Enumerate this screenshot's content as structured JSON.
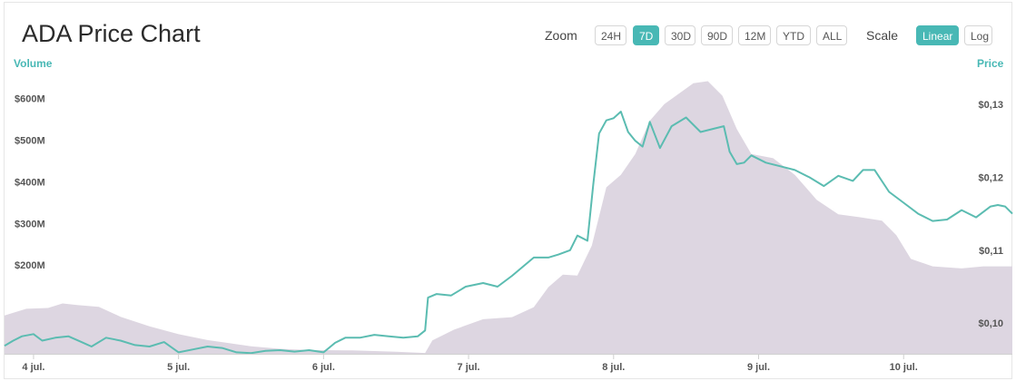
{
  "header": {
    "title": "ADA Price Chart",
    "zoom_label": "Zoom",
    "zoom_options": [
      "24H",
      "7D",
      "30D",
      "90D",
      "12M",
      "YTD",
      "ALL"
    ],
    "zoom_selected": "7D",
    "scale_label": "Scale",
    "scale_options": [
      "Linear",
      "Log"
    ],
    "scale_selected": "Linear"
  },
  "colors": {
    "accent": "#48b8b5",
    "price_line": "#5bbcb1",
    "volume_fill": "#ddd6e1"
  },
  "chart_data": {
    "type": "line",
    "title": "ADA Price Chart",
    "left_axis_title": "Volume",
    "right_axis_title": "Price",
    "x_ticks": [
      "4 jul.",
      "5 jul.",
      "6 jul.",
      "7 jul.",
      "8 jul.",
      "9 jul.",
      "10 jul."
    ],
    "volume_ticks": [
      {
        "value": 200,
        "label": "$200M"
      },
      {
        "value": 300,
        "label": "$300M"
      },
      {
        "value": 400,
        "label": "$400M"
      },
      {
        "value": 500,
        "label": "$500M"
      },
      {
        "value": 600,
        "label": "$600M"
      }
    ],
    "price_ticks": [
      {
        "value": 0.1,
        "label": "$0,10"
      },
      {
        "value": 0.11,
        "label": "$0,11"
      },
      {
        "value": 0.12,
        "label": "$0,12"
      },
      {
        "value": 0.13,
        "label": "$0,13"
      }
    ],
    "x_range_days": [
      3.8,
      10.75
    ],
    "volume_range": [
      0,
      680
    ],
    "price_range": [
      0.0958,
      0.1346
    ],
    "series": [
      {
        "name": "Volume",
        "type": "area",
        "points": [
          [
            3.8,
            92
          ],
          [
            3.95,
            108
          ],
          [
            4.1,
            110
          ],
          [
            4.2,
            121
          ],
          [
            4.3,
            117
          ],
          [
            4.45,
            113
          ],
          [
            4.6,
            89
          ],
          [
            4.8,
            66
          ],
          [
            5.0,
            47
          ],
          [
            5.2,
            33
          ],
          [
            5.5,
            18
          ],
          [
            5.7,
            12
          ],
          [
            5.9,
            9
          ],
          [
            6.2,
            8
          ],
          [
            6.5,
            5
          ],
          [
            6.7,
            2
          ],
          [
            6.75,
            32
          ],
          [
            6.9,
            58
          ],
          [
            7.1,
            83
          ],
          [
            7.3,
            88
          ],
          [
            7.45,
            112
          ],
          [
            7.55,
            160
          ],
          [
            7.65,
            190
          ],
          [
            7.75,
            188
          ],
          [
            7.85,
            260
          ],
          [
            7.95,
            400
          ],
          [
            8.05,
            430
          ],
          [
            8.15,
            480
          ],
          [
            8.25,
            560
          ],
          [
            8.35,
            600
          ],
          [
            8.45,
            625
          ],
          [
            8.55,
            650
          ],
          [
            8.65,
            655
          ],
          [
            8.75,
            620
          ],
          [
            8.85,
            540
          ],
          [
            8.95,
            480
          ],
          [
            9.1,
            470
          ],
          [
            9.25,
            430
          ],
          [
            9.4,
            370
          ],
          [
            9.55,
            335
          ],
          [
            9.7,
            328
          ],
          [
            9.85,
            320
          ],
          [
            9.95,
            285
          ],
          [
            10.05,
            228
          ],
          [
            10.2,
            210
          ],
          [
            10.4,
            205
          ],
          [
            10.55,
            210
          ],
          [
            10.75,
            210
          ]
        ]
      },
      {
        "name": "Price",
        "type": "line",
        "points": [
          [
            3.8,
            0.0969
          ],
          [
            3.86,
            0.0976
          ],
          [
            3.92,
            0.0982
          ],
          [
            4.0,
            0.0985
          ],
          [
            4.06,
            0.0976
          ],
          [
            4.15,
            0.098
          ],
          [
            4.24,
            0.0982
          ],
          [
            4.32,
            0.0975
          ],
          [
            4.4,
            0.0968
          ],
          [
            4.5,
            0.098
          ],
          [
            4.6,
            0.0976
          ],
          [
            4.7,
            0.097
          ],
          [
            4.8,
            0.0968
          ],
          [
            4.9,
            0.0974
          ],
          [
            5.0,
            0.096
          ],
          [
            5.1,
            0.0964
          ],
          [
            5.2,
            0.0968
          ],
          [
            5.3,
            0.0966
          ],
          [
            5.4,
            0.096
          ],
          [
            5.5,
            0.0959
          ],
          [
            5.6,
            0.0962
          ],
          [
            5.7,
            0.0963
          ],
          [
            5.8,
            0.0961
          ],
          [
            5.9,
            0.0963
          ],
          [
            6.0,
            0.096
          ],
          [
            6.08,
            0.0973
          ],
          [
            6.15,
            0.098
          ],
          [
            6.25,
            0.098
          ],
          [
            6.35,
            0.0984
          ],
          [
            6.45,
            0.0982
          ],
          [
            6.55,
            0.098
          ],
          [
            6.65,
            0.0982
          ],
          [
            6.7,
            0.099
          ],
          [
            6.72,
            0.1035
          ],
          [
            6.78,
            0.104
          ],
          [
            6.88,
            0.1038
          ],
          [
            6.98,
            0.105
          ],
          [
            7.1,
            0.1055
          ],
          [
            7.2,
            0.105
          ],
          [
            7.3,
            0.1065
          ],
          [
            7.45,
            0.109
          ],
          [
            7.55,
            0.109
          ],
          [
            7.62,
            0.1094
          ],
          [
            7.7,
            0.11
          ],
          [
            7.75,
            0.112
          ],
          [
            7.82,
            0.1113
          ],
          [
            7.86,
            0.119
          ],
          [
            7.9,
            0.126
          ],
          [
            7.95,
            0.1278
          ],
          [
            8.0,
            0.1281
          ],
          [
            8.05,
            0.129
          ],
          [
            8.1,
            0.1262
          ],
          [
            8.15,
            0.125
          ],
          [
            8.2,
            0.1242
          ],
          [
            8.25,
            0.1276
          ],
          [
            8.32,
            0.124
          ],
          [
            8.4,
            0.127
          ],
          [
            8.5,
            0.1282
          ],
          [
            8.6,
            0.1262
          ],
          [
            8.7,
            0.1267
          ],
          [
            8.76,
            0.127
          ],
          [
            8.8,
            0.1235
          ],
          [
            8.85,
            0.1218
          ],
          [
            8.9,
            0.122
          ],
          [
            8.95,
            0.123
          ],
          [
            9.05,
            0.122
          ],
          [
            9.15,
            0.1215
          ],
          [
            9.25,
            0.121
          ],
          [
            9.35,
            0.12
          ],
          [
            9.45,
            0.1188
          ],
          [
            9.55,
            0.1202
          ],
          [
            9.65,
            0.1195
          ],
          [
            9.72,
            0.121
          ],
          [
            9.8,
            0.121
          ],
          [
            9.9,
            0.118
          ],
          [
            10.0,
            0.1165
          ],
          [
            10.1,
            0.115
          ],
          [
            10.2,
            0.114
          ],
          [
            10.3,
            0.1142
          ],
          [
            10.4,
            0.1155
          ],
          [
            10.5,
            0.1145
          ],
          [
            10.6,
            0.116
          ],
          [
            10.65,
            0.1162
          ],
          [
            10.7,
            0.116
          ],
          [
            10.75,
            0.115
          ]
        ]
      }
    ],
    "grid": false
  }
}
